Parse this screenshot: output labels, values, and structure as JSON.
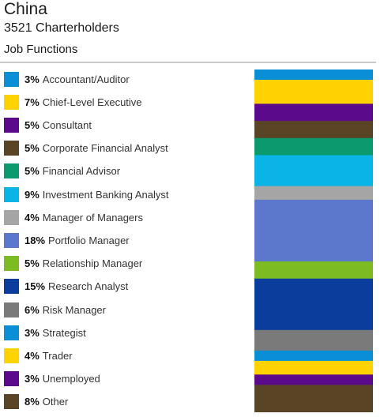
{
  "header": {
    "title": "China",
    "subtitle": "3521 Charterholders",
    "section": "Job Functions"
  },
  "chart_data": {
    "type": "bar",
    "orientation": "stacked-vertical",
    "unit": "%",
    "categories": [
      "Accountant/Auditor",
      "Chief-Level Executive",
      "Consultant",
      "Corporate Financial Analyst",
      "Financial Advisor",
      "Investment Banking Analyst",
      "Manager of Managers",
      "Portfolio Manager",
      "Relationship Manager",
      "Research Analyst",
      "Risk Manager",
      "Strategist",
      "Trader",
      "Unemployed",
      "Other"
    ],
    "values": [
      3,
      7,
      5,
      5,
      5,
      9,
      4,
      18,
      5,
      15,
      6,
      3,
      4,
      3,
      8
    ],
    "value_labels": [
      "3%",
      "7%",
      "5%",
      "5%",
      "5%",
      "9%",
      "4%",
      "18%",
      "5%",
      "15%",
      "6%",
      "3%",
      "4%",
      "3%",
      "8%"
    ],
    "colors": [
      "#0a8fd6",
      "#ffd200",
      "#5c0a8c",
      "#5a4426",
      "#0a9a6e",
      "#0ab4e6",
      "#a5a5a5",
      "#5b78cc",
      "#7cbc22",
      "#0a3d9c",
      "#7a7a7a",
      "#0a8fd6",
      "#ffd200",
      "#5c0a8c",
      "#5a4426"
    ],
    "legend_position": "left"
  }
}
